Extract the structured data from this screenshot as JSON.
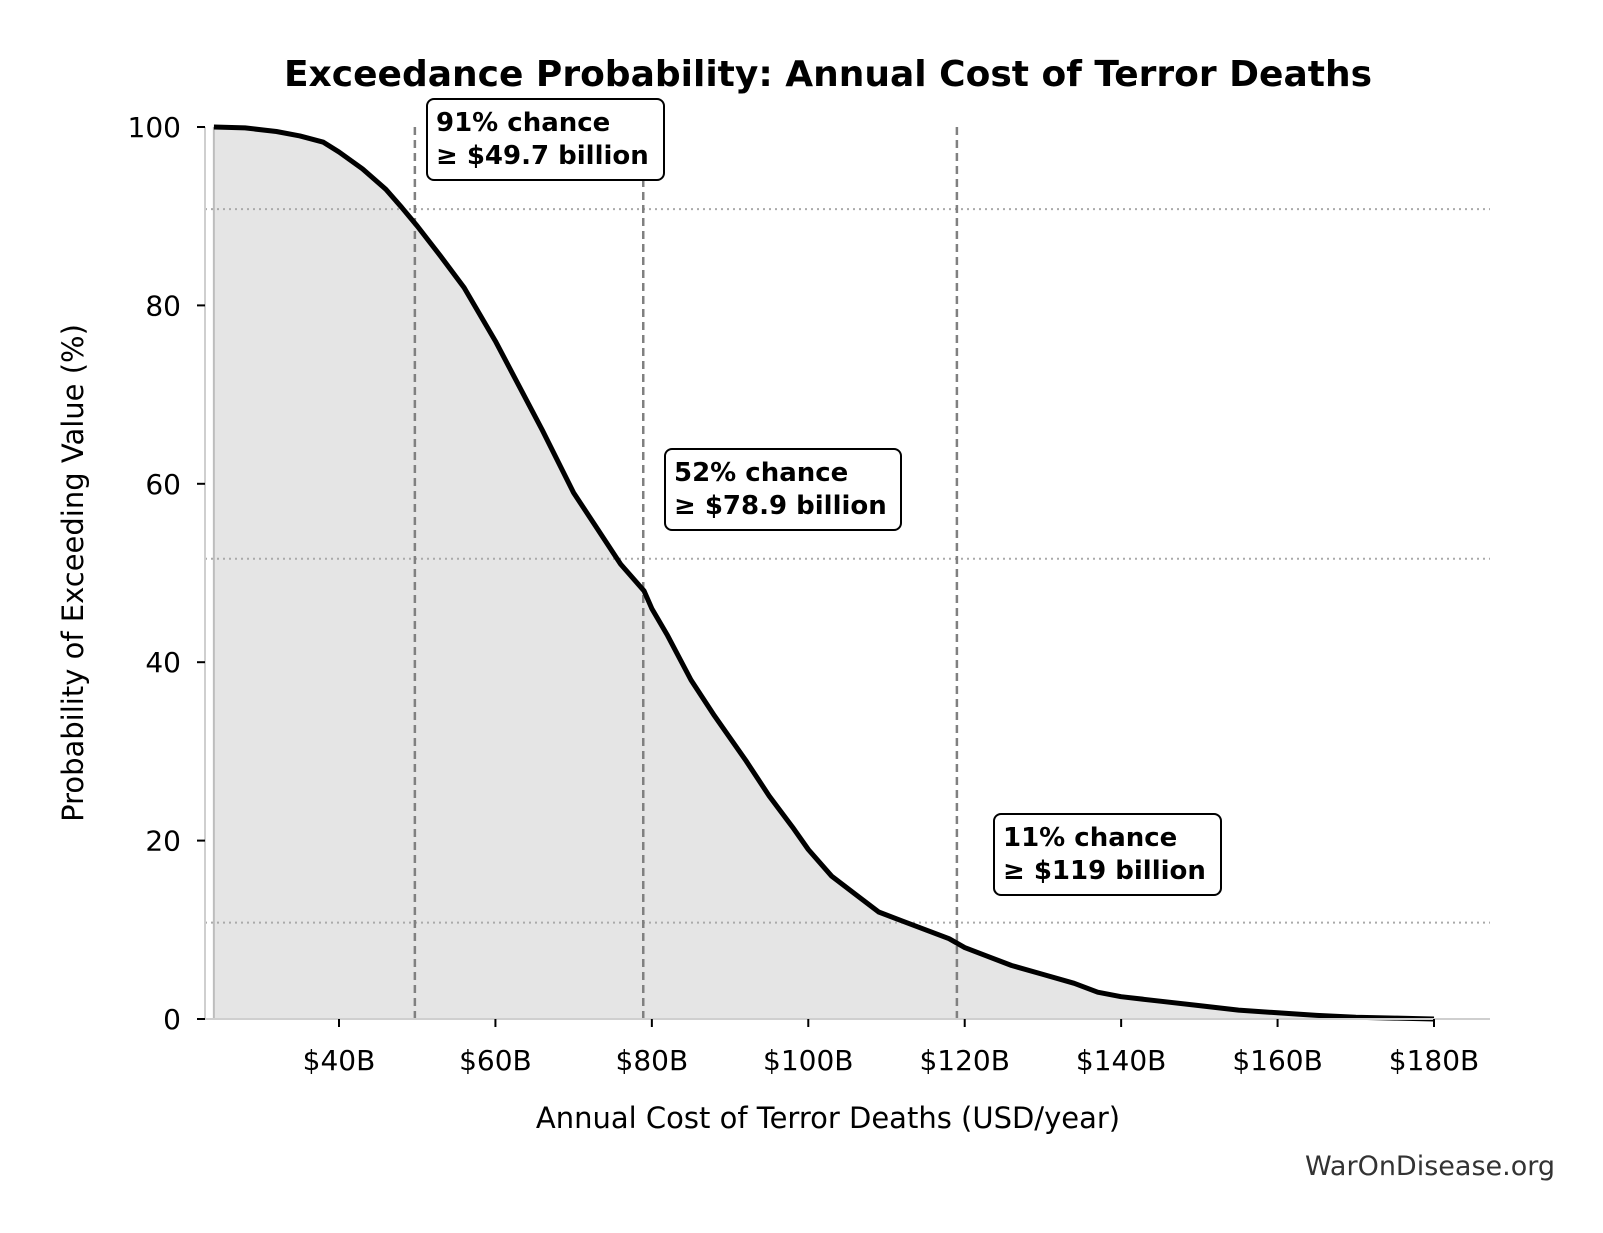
{
  "chart_data": {
    "type": "area",
    "title": "Exceedance Probability: Annual Cost of Terror Deaths",
    "xlabel": "Annual Cost of Terror Deaths (USD/year)",
    "ylabel": "Probability of Exceeding Value (%)",
    "xlim": [
      23,
      188
    ],
    "ylim": [
      0,
      100
    ],
    "x_ticks": [
      40,
      60,
      80,
      100,
      120,
      140,
      160,
      180
    ],
    "x_tick_labels": [
      "$40B",
      "$60B",
      "$80B",
      "$100B",
      "$120B",
      "$140B",
      "$160B",
      "$180B"
    ],
    "y_ticks": [
      0,
      20,
      40,
      60,
      80,
      100
    ],
    "y_tick_labels": [
      "0",
      "20",
      "40",
      "60",
      "80",
      "100"
    ],
    "series": [
      {
        "x": [
          24,
          28,
          32,
          35,
          38,
          40,
          43,
          46,
          48,
          50,
          53,
          56,
          60,
          63,
          66,
          70,
          73,
          76,
          79,
          80,
          82,
          85,
          88,
          92,
          95,
          98,
          100,
          103,
          106,
          109,
          112,
          115,
          118,
          120,
          123,
          126,
          130,
          134,
          137,
          140,
          145,
          150,
          155,
          160,
          165,
          170,
          175,
          180
        ],
        "y": [
          100,
          99.9,
          99.5,
          99,
          98.3,
          97.2,
          95.3,
          93,
          91,
          88.9,
          85.5,
          82,
          76,
          71,
          66,
          59,
          55,
          51,
          48,
          46,
          43,
          38,
          34,
          29,
          25,
          21.5,
          19,
          16,
          14,
          12,
          11,
          10,
          9,
          8,
          7,
          6,
          5,
          4,
          3,
          2.5,
          2,
          1.5,
          1,
          0.7,
          0.4,
          0.2,
          0.1,
          0
        ]
      }
    ],
    "reference_lines": [
      {
        "x": 49.7,
        "y": 90.8
      },
      {
        "x": 78.9,
        "y": 51.6
      },
      {
        "x": 119,
        "y": 10.8
      }
    ],
    "annotations": [
      {
        "line1": "91% chance",
        "line2": "≥ $49.7 billion"
      },
      {
        "line1": "52% chance",
        "line2": "≥ $78.9 billion"
      },
      {
        "line1": "11% chance",
        "line2": "≥ $119 billion"
      }
    ],
    "grid": false,
    "legend": "none",
    "line_color": "#000000",
    "fill_color": "#e5e5e5",
    "reference_line_color": "#808080"
  },
  "watermark": "WarOnDisease.org"
}
